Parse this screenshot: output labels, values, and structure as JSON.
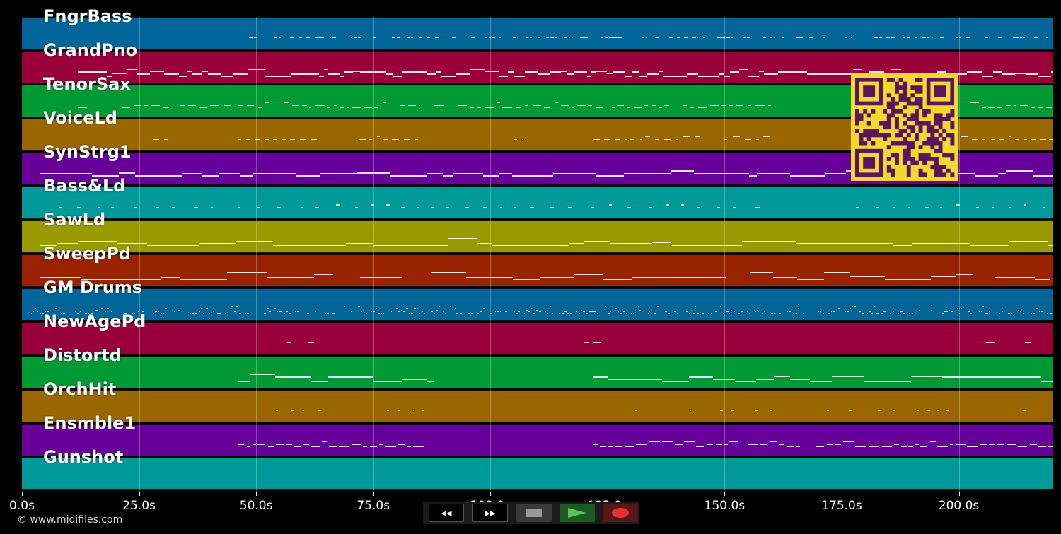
{
  "tracks": [
    {
      "name": "FngrBass",
      "color": "#006699"
    },
    {
      "name": "GrandPno",
      "color": "#99003a"
    },
    {
      "name": "TenorSax",
      "color": "#009933"
    },
    {
      "name": "VoiceLd",
      "color": "#996600"
    },
    {
      "name": "SynStrg1",
      "color": "#660099"
    },
    {
      "name": "Bass&Ld",
      "color": "#009999"
    },
    {
      "name": "SawLd",
      "color": "#999900"
    },
    {
      "name": "SweepPd",
      "color": "#992200"
    },
    {
      "name": "GM Drums",
      "color": "#006699"
    },
    {
      "name": "NewAgePd",
      "color": "#99003a"
    },
    {
      "name": "Distortd",
      "color": "#009933"
    },
    {
      "name": "OrchHit",
      "color": "#996600"
    },
    {
      "name": "Ensmble1",
      "color": "#660099"
    },
    {
      "name": "Gunshot",
      "color": "#009999"
    }
  ],
  "time_axis": {
    "unit": "s",
    "max_seconds": 220,
    "ticks": [
      "0.0s",
      "25.0s",
      "50.0s",
      "75.0s",
      "100.0s",
      "125.0s",
      "150.0s",
      "175.0s",
      "200.0s"
    ]
  },
  "transport": {
    "rewind_label": "◂◂",
    "forward_label": "▸▸",
    "stop_icon": "stop-square",
    "play_icon": "play-triangle",
    "record_icon": "record-dot"
  },
  "copyright": "© www.midifiles.com",
  "colors": {
    "background": "#000000",
    "qr_background": "#f4d830",
    "qr_modules": "#5a1460"
  }
}
